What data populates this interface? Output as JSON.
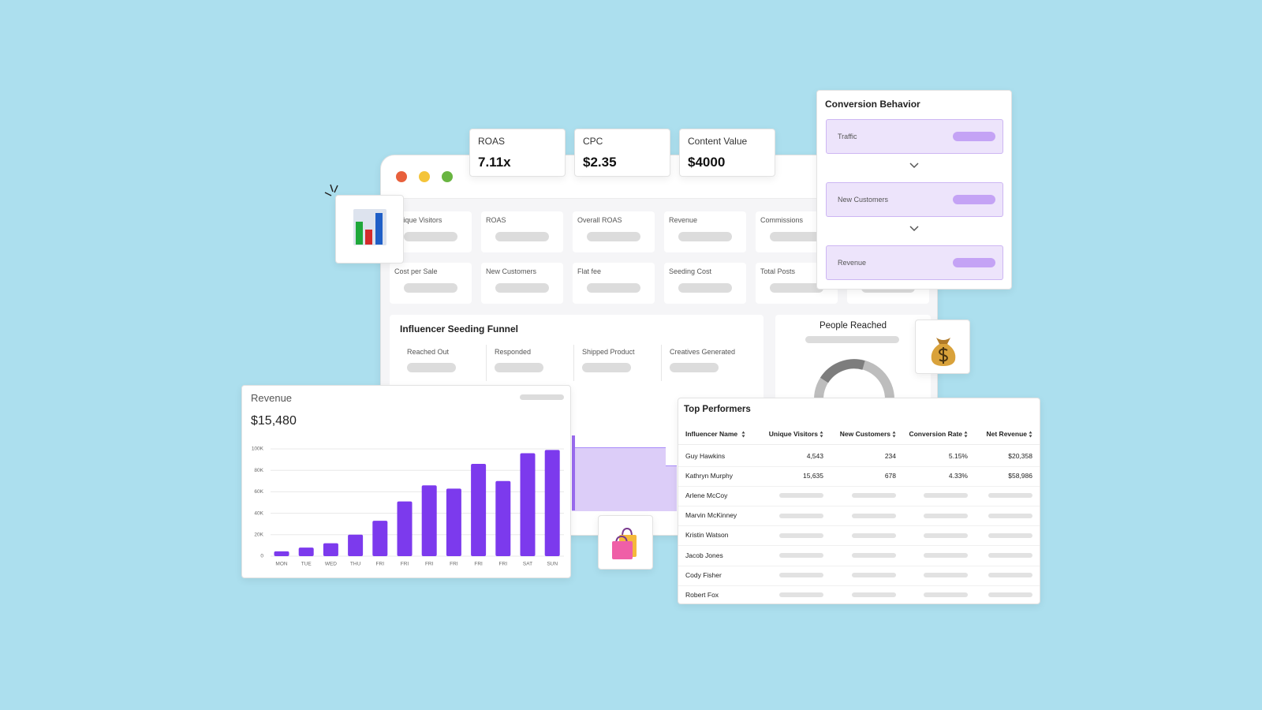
{
  "kpis": [
    {
      "label": "ROAS",
      "value": "7.11x"
    },
    {
      "label": "CPC",
      "value": "$2.35"
    },
    {
      "label": "Content Value",
      "value": "$4000"
    }
  ],
  "metrics": [
    [
      "Unique Visitors",
      "ROAS",
      "Overall ROAS",
      "Revenue",
      "Commissions"
    ],
    [
      "Cost per Sale",
      "New Customers",
      "Flat fee",
      "Seeding Cost",
      "Total Posts"
    ]
  ],
  "funnel": {
    "title": "Influencer Seeding Funnel",
    "stages": [
      "Reached Out",
      "Responded",
      "Shipped Product",
      "Creatives Generated"
    ]
  },
  "people_reached": {
    "title": "People Reached"
  },
  "conversion_behavior": {
    "title": "Conversion Behavior",
    "steps": [
      "Traffic",
      "New Customers",
      "Revenue"
    ]
  },
  "revenue_card": {
    "title": "Revenue",
    "total": "$15,480",
    "chart": {
      "type": "bar",
      "categories": [
        "MON",
        "TUE",
        "WED",
        "THU",
        "FRI",
        "FRI",
        "FRI",
        "FRI",
        "FRI",
        "FRI",
        "SAT",
        "SUN"
      ],
      "values": [
        4500,
        8000,
        12000,
        20000,
        33000,
        51000,
        66000,
        63000,
        86000,
        70000,
        96000,
        99000
      ],
      "color": "#7c3aed",
      "ylim": [
        0,
        100000
      ],
      "yticks": [
        0,
        {
          "value": 20000,
          "label": "20K"
        },
        {
          "value": 40000,
          "label": "40K"
        },
        {
          "value": 60000,
          "label": "60K"
        },
        {
          "value": 80000,
          "label": "80K"
        },
        {
          "value": 100000,
          "label": "100K"
        }
      ],
      "grid": true
    }
  },
  "top_performers": {
    "title": "Top Performers",
    "columns": [
      "Influencer Name",
      "Unique Visitors",
      "New Customers",
      "Conversion Rate",
      "Net Revenue"
    ],
    "rows": [
      [
        "Guy Hawkins",
        "4,543",
        "234",
        "5.15%",
        "$20,358"
      ],
      [
        "Kathryn Murphy",
        "15,635",
        "678",
        "4.33%",
        "$58,986"
      ],
      [
        "Arlene McCoy"
      ],
      [
        "Marvin McKinney"
      ],
      [
        "Kristin Watson"
      ],
      [
        "Jacob Jones"
      ],
      [
        "Cody Fisher"
      ],
      [
        "Robert Fox"
      ]
    ]
  }
}
